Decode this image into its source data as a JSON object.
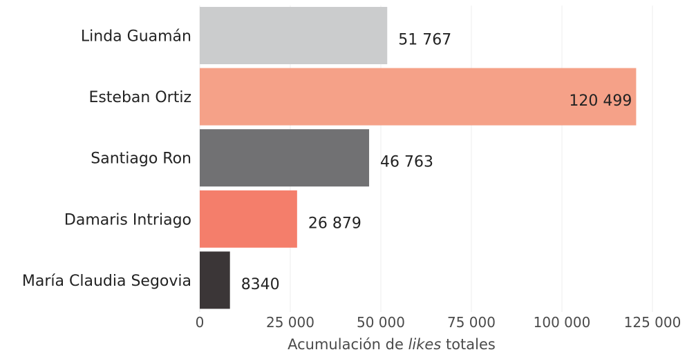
{
  "chart_data": {
    "type": "bar",
    "orientation": "horizontal",
    "categories": [
      "Linda Guamán",
      "Esteban Ortiz",
      "Santiago Ron",
      "Damaris Intriago",
      "María Claudia Segovia"
    ],
    "values": [
      51767,
      120499,
      46763,
      26879,
      8340
    ],
    "value_labels": [
      "51 767",
      "120 499",
      "46 763",
      "26 879",
      "8340"
    ],
    "colors": [
      "#cbcccd",
      "#f5a188",
      "#717173",
      "#f47e6b",
      "#3b3637"
    ],
    "xlim": [
      0,
      125000
    ],
    "xticks": [
      0,
      25000,
      50000,
      75000,
      100000,
      125000
    ],
    "xtick_labels": [
      "0",
      "25 000",
      "50 000",
      "75 000",
      "100 000",
      "125 000"
    ],
    "xlabel": {
      "prefix": "Acumulación de ",
      "emphasis": "likes",
      "suffix": " totales"
    },
    "ylabel": "",
    "title": "",
    "grid": "vertical",
    "legend": "none"
  }
}
